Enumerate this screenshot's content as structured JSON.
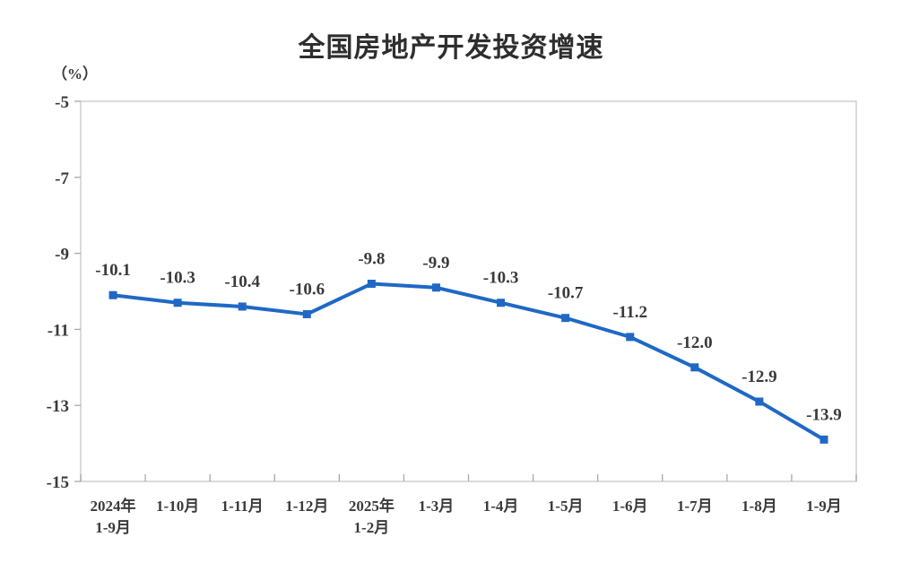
{
  "page": {
    "background": "#ffffff"
  },
  "chart_data": {
    "type": "line",
    "title": "全国房地产开发投资增速",
    "unit_label": "（%）",
    "categories": [
      "2024年\n1-9月",
      "1-10月",
      "1-11月",
      "1-12月",
      "2025年\n1-2月",
      "1-3月",
      "1-4月",
      "1-5月",
      "1-6月",
      "1-7月",
      "1-8月",
      "1-9月"
    ],
    "values": [
      -10.1,
      -10.3,
      -10.4,
      -10.6,
      -9.8,
      -9.9,
      -10.3,
      -10.7,
      -11.2,
      -12.0,
      -12.9,
      -13.9
    ],
    "data_labels": [
      "-10.1",
      "-10.3",
      "-10.4",
      "-10.6",
      "-9.8",
      "-9.9",
      "-10.3",
      "-10.7",
      "-11.2",
      "-12.0",
      "-12.9",
      "-13.9"
    ],
    "y_ticks": [
      -5,
      -7,
      -9,
      -11,
      -13,
      -15
    ],
    "y_tick_labels": [
      "-5",
      "-7",
      "-9",
      "-11",
      "-13",
      "-15"
    ],
    "ylim": [
      -15,
      -5
    ],
    "xlabel": "",
    "ylabel": "",
    "grid": false,
    "legend": "none",
    "line_color": "#1f68c5",
    "marker": "square",
    "text_color": "#3a3a3a",
    "axis_color": "#cfcfcf",
    "tick_color": "#a8a8a8"
  }
}
